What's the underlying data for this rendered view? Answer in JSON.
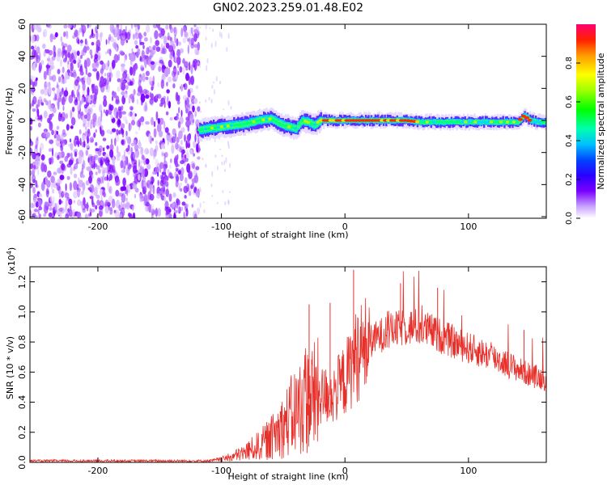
{
  "title": "GN02.2023.259.01.48.E02",
  "chart_data": [
    {
      "type": "heatmap",
      "xlabel": "Height of straight line (km)",
      "ylabel": "Frequency (Hz)",
      "xlim": [
        -255,
        163
      ],
      "ylim": [
        -61,
        60
      ],
      "xticks": [
        -200,
        -100,
        0,
        100
      ],
      "yticks": [
        -60,
        -40,
        -20,
        0,
        20,
        40,
        60
      ],
      "noise_region_x": [
        -255,
        -118
      ],
      "ridge": {
        "x": [
          -118,
          -110,
          -100,
          -90,
          -80,
          -70,
          -60,
          -50,
          -40,
          -35,
          -30,
          -25,
          -20,
          -15,
          -10,
          0,
          10,
          20,
          30,
          40,
          50,
          60,
          70,
          80,
          90,
          100,
          110,
          120,
          130,
          140,
          145,
          150,
          155,
          163
        ],
        "frequency": [
          -6,
          -5,
          -4,
          -3,
          -2,
          0,
          1,
          -3,
          -5,
          0,
          -1,
          -3,
          0,
          0,
          0,
          0,
          0,
          0,
          0,
          0,
          0,
          -1,
          -1,
          -1,
          -1,
          -1,
          -1,
          -1,
          -1,
          -1,
          3,
          0,
          -1,
          -1
        ]
      },
      "colorbar": {
        "label": "Normalized spectral amplitude",
        "ticks": [
          0.0,
          0.2,
          0.4,
          0.6,
          0.8
        ],
        "range": [
          0,
          1
        ]
      }
    },
    {
      "type": "line",
      "xlabel": "Height of straight line (km)",
      "ylabel": "SNR (10 * v/v)",
      "scale_label": "(x10",
      "scale_exp": "4",
      "scale_close": ")",
      "xlim": [
        -255,
        163
      ],
      "ylim": [
        0,
        1.3
      ],
      "xticks": [
        -200,
        -100,
        0,
        100
      ],
      "yticks": [
        0.0,
        0.2,
        0.4,
        0.6,
        0.8,
        1.0,
        1.2
      ],
      "color": "#e8302b",
      "envelope": {
        "x": [
          -255,
          -110,
          -100,
          -90,
          -80,
          -70,
          -60,
          -50,
          -40,
          -30,
          -20,
          -10,
          0,
          10,
          20,
          30,
          40,
          50,
          60,
          70,
          80,
          90,
          100,
          110,
          120,
          130,
          140,
          150,
          163
        ],
        "y": [
          0.01,
          0.01,
          0.02,
          0.04,
          0.07,
          0.11,
          0.16,
          0.24,
          0.34,
          0.42,
          0.44,
          0.45,
          0.55,
          0.72,
          0.8,
          0.85,
          0.88,
          0.9,
          0.9,
          0.87,
          0.83,
          0.79,
          0.76,
          0.73,
          0.7,
          0.66,
          0.62,
          0.58,
          0.55
        ]
      },
      "peaks": [
        {
          "x": 7,
          "y": 1.28
        },
        {
          "x": -12,
          "y": 1.06
        },
        {
          "x": -29,
          "y": 1.05
        },
        {
          "x": 45,
          "y": 1.19
        },
        {
          "x": 75,
          "y": 1.16
        },
        {
          "x": 145,
          "y": 0.88
        }
      ]
    }
  ]
}
